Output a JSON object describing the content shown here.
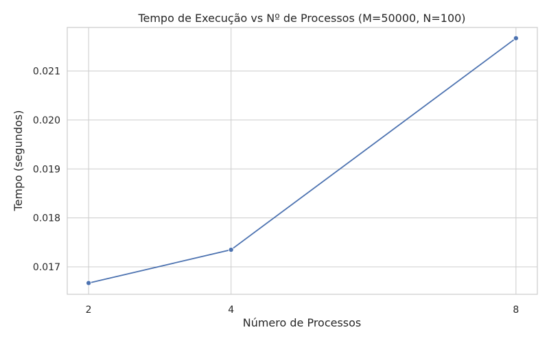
{
  "chart_data": {
    "type": "line",
    "title": "Tempo de Execução vs Nº de Processos (M=50000, N=100)",
    "xlabel": "Número de Processos",
    "ylabel": "Tempo (segundos)",
    "x": [
      2,
      4,
      8
    ],
    "x_tick_labels": [
      "2",
      "4",
      "8"
    ],
    "xlim": [
      1.7,
      8.3
    ],
    "y_ticks": [
      0.017,
      0.018,
      0.019,
      0.02,
      0.021
    ],
    "y_tick_labels": [
      "0.017",
      "0.018",
      "0.019",
      "0.020",
      "0.021"
    ],
    "ylim": [
      0.01644,
      0.02189
    ],
    "series": [
      {
        "values": [
          0.01667,
          0.01735,
          0.02167
        ],
        "color": "#4c72b0",
        "marker": "circle"
      }
    ],
    "grid": true,
    "legend": "none"
  }
}
